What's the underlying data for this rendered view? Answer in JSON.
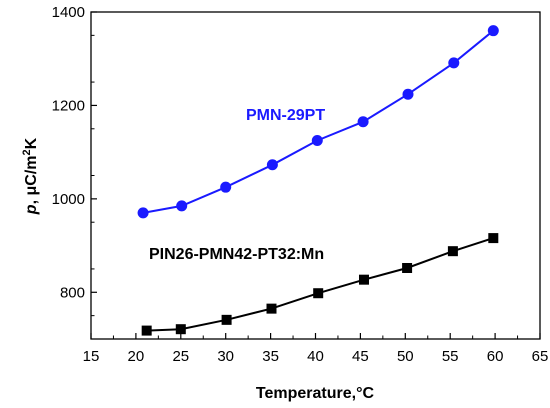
{
  "chart_data": {
    "type": "line",
    "title": "",
    "xlabel": "Temperature,°C",
    "ylabel_parts": [
      "p",
      ", μC/m",
      "2",
      "K"
    ],
    "xlim": [
      15,
      65
    ],
    "ylim": [
      700,
      1400
    ],
    "xticks": [
      15,
      20,
      25,
      30,
      35,
      40,
      45,
      50,
      55,
      60,
      65
    ],
    "yticks": [
      800,
      1000,
      1200,
      1400
    ],
    "grid": false,
    "series": [
      {
        "name": "PMN-29PT",
        "color": "#1a1aff",
        "marker": "circle",
        "x": [
          20.8,
          25.1,
          30.0,
          35.2,
          40.2,
          45.3,
          50.3,
          55.4,
          59.8
        ],
        "y": [
          970,
          985,
          1025,
          1073,
          1125,
          1165,
          1224,
          1291,
          1360
        ]
      },
      {
        "name": "PIN26-PMN42-PT32:Mn",
        "color": "#000000",
        "marker": "square",
        "x": [
          21.2,
          25.0,
          30.1,
          35.1,
          40.3,
          45.4,
          50.2,
          55.3,
          59.8
        ],
        "y": [
          718,
          721,
          741,
          765,
          798,
          827,
          852,
          888,
          916
        ]
      }
    ]
  }
}
